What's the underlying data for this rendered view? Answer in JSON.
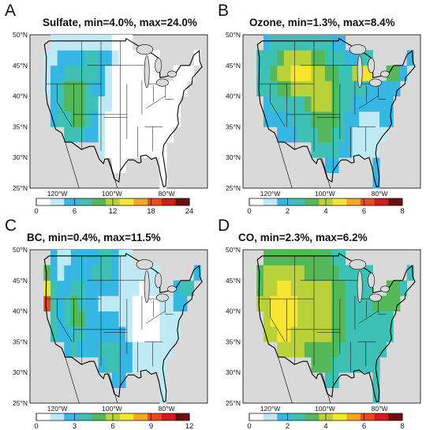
{
  "panels": [
    {
      "letter": "A",
      "title": "Sulfate, min=4.0%, max=24.0%",
      "colorbar_ticks": [
        "0",
        "6",
        "12",
        "18",
        "24"
      ]
    },
    {
      "letter": "B",
      "title": "Ozone, min=1.3%, max=8.4%",
      "colorbar_ticks": [
        "0",
        "2",
        "4",
        "6",
        "8"
      ]
    },
    {
      "letter": "C",
      "title": "BC, min=0.4%, max=11.5%",
      "colorbar_ticks": [
        "0",
        "3",
        "6",
        "9",
        "12"
      ]
    },
    {
      "letter": "D",
      "title": "CO, min=2.3%, max=6.2%",
      "colorbar_ticks": [
        "0",
        "2",
        "4",
        "6",
        "8"
      ]
    }
  ],
  "lat_labels": [
    "50°N",
    "45°N",
    "40°N",
    "35°N",
    "30°N",
    "25°N"
  ],
  "lon_labels": [
    "120°W",
    "100°W",
    "80°W"
  ],
  "colorscale": [
    "#ffffff",
    "#bfeaf5",
    "#36b7e3",
    "#3ec0b5",
    "#55b858",
    "#b9d23a",
    "#f7e62d",
    "#f5a623",
    "#ea4a1c",
    "#cf1c1c",
    "#6e0b0b"
  ],
  "map_colors": {
    "background": "#d9d9d9",
    "outline": "#000000"
  }
}
